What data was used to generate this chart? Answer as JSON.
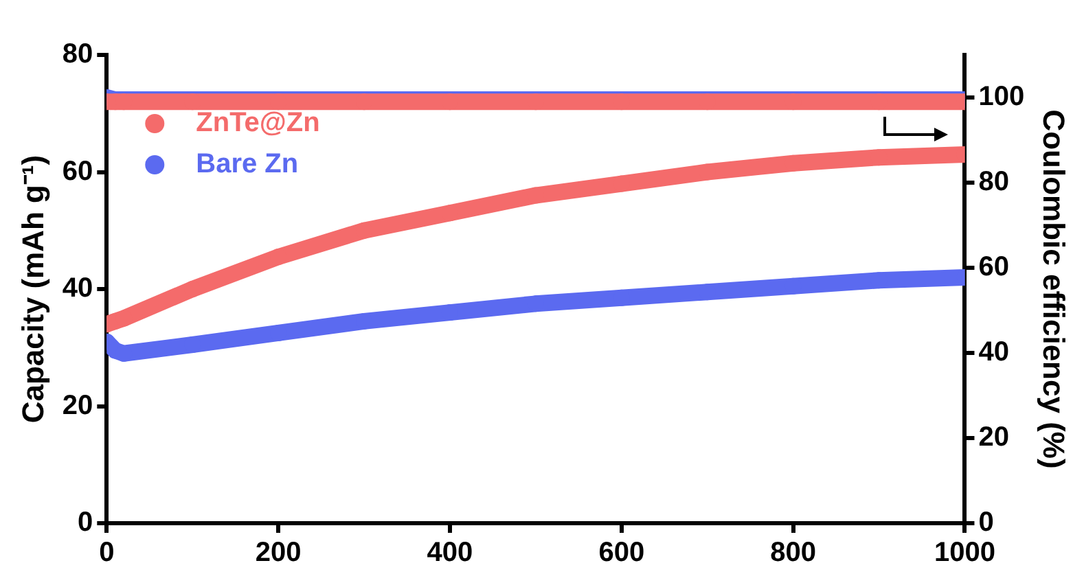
{
  "chart_data": {
    "type": "line",
    "xlabel": null,
    "ylabel": "Capacity (mAh g⁻¹)",
    "y2label": "Coulombic efficiency (%)",
    "x": [
      0,
      10,
      20,
      100,
      200,
      300,
      400,
      500,
      600,
      700,
      800,
      900,
      1000
    ],
    "series": [
      {
        "name": "ZnTe@Zn",
        "color": "#f46b6b",
        "values": [
          34,
          34.5,
          35,
          40,
          45.5,
          50,
          53,
          56,
          58,
          60,
          61.5,
          62.5,
          63
        ]
      },
      {
        "name": "Bare Zn",
        "color": "#5b6af0",
        "values": [
          31,
          29.5,
          29,
          30.5,
          32.5,
          34.5,
          36,
          37.5,
          38.5,
          39.5,
          40.5,
          41.5,
          42
        ]
      },
      {
        "color": "#f46b6b",
        "axis": "y2",
        "values": [
          99,
          99,
          99,
          99,
          99,
          99,
          99,
          99,
          99,
          99,
          99,
          99,
          99
        ]
      },
      {
        "color": "#5b6af0",
        "axis": "y2",
        "values": [
          100,
          99.5,
          99.5,
          99.5,
          99.5,
          99.5,
          99.5,
          99.5,
          99.5,
          99.5,
          99.5,
          99.5,
          99.5
        ]
      }
    ],
    "xlim": [
      0,
      1000
    ],
    "xticks": [
      0,
      200,
      400,
      600,
      800,
      1000
    ],
    "ylim": [
      0,
      80
    ],
    "yticks": [
      0,
      20,
      40,
      60,
      80
    ],
    "y2lim": [
      0,
      110
    ],
    "y2ticks": [
      0,
      20,
      40,
      60,
      80,
      100
    ],
    "grid": false,
    "legend": "top left",
    "marker": "circle",
    "line_style": "solid"
  }
}
